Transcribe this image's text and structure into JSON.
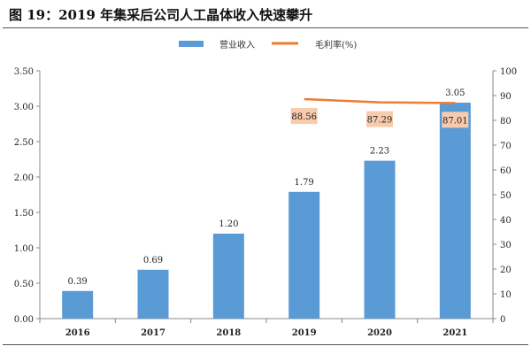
{
  "chart_data": {
    "type": "bar+line",
    "title": "图 19：2019 年集采后公司人工晶体收入快速攀升",
    "categories": [
      "2016",
      "2017",
      "2018",
      "2019",
      "2020",
      "2021"
    ],
    "series": [
      {
        "name": "营业收入",
        "type": "bar",
        "axis": "left",
        "color": "#5b9bd5",
        "values": [
          0.39,
          0.69,
          1.2,
          1.79,
          2.23,
          3.05
        ]
      },
      {
        "name": "毛利率(%)",
        "type": "line",
        "axis": "right",
        "color": "#ed7d31",
        "values": [
          null,
          null,
          null,
          88.56,
          87.29,
          87.01
        ]
      }
    ],
    "left_axis": {
      "ylim": [
        0,
        3.5
      ],
      "ticks": [
        "0.00",
        "0.50",
        "1.00",
        "1.50",
        "2.00",
        "2.50",
        "3.00",
        "3.50"
      ]
    },
    "right_axis": {
      "ylim": [
        0,
        100
      ],
      "ticks": [
        "0",
        "10",
        "20",
        "30",
        "40",
        "50",
        "60",
        "70",
        "80",
        "90",
        "100"
      ]
    },
    "bar_labels": [
      "0.39",
      "0.69",
      "1.20",
      "1.79",
      "2.23",
      "3.05"
    ],
    "line_labels": [
      "88.56",
      "87.29",
      "87.01"
    ],
    "line_label_bg": "#f8cbad",
    "legend": "top-center",
    "grid": false
  }
}
